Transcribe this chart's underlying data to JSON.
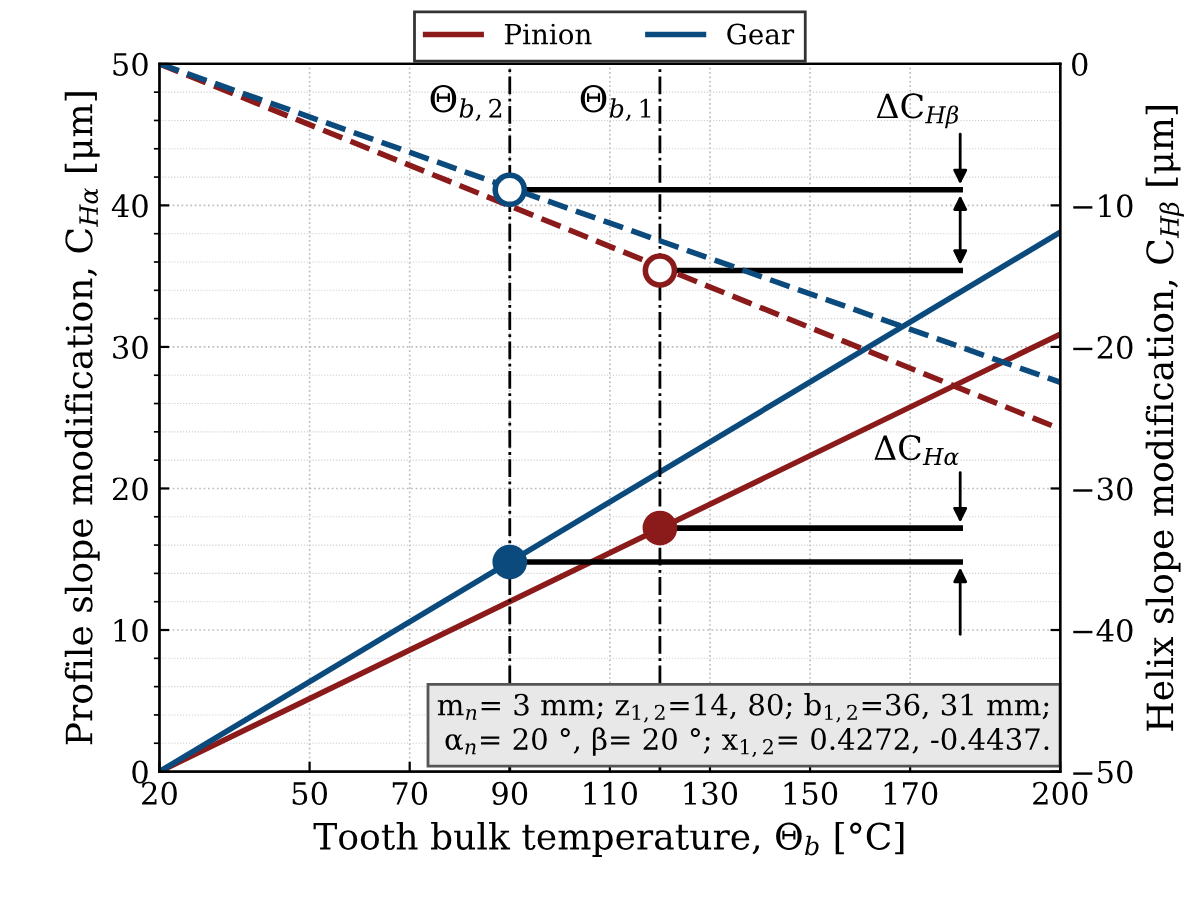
{
  "chart_data": {
    "type": "line",
    "xlabel": "Tooth bulk temperature, Θ$_{b}$ [°C]",
    "ylabel": "Profile slope modification, C$_{Hα}$ [μm]",
    "y2label": "Helix slope modification, C$_{Hβ}$ [μm]",
    "xlim": [
      20,
      200
    ],
    "xticks": [
      20,
      50,
      70,
      90,
      110,
      130,
      150,
      170,
      200
    ],
    "ylim": [
      0,
      50
    ],
    "yticks": [
      0,
      10,
      20,
      30,
      40,
      50
    ],
    "y2lim": [
      -50,
      0
    ],
    "y2ticks": [
      -50,
      -40,
      -30,
      -20,
      -10,
      0
    ],
    "grid": true,
    "legend": "top",
    "series": [
      {
        "name": "Pinion",
        "color": "#8b1a1a",
        "x": [
          20,
          200
        ],
        "values": [
          0,
          30.9
        ],
        "line_style": "solid"
      },
      {
        "name": "Gear",
        "color": "#0b4a7d",
        "x": [
          20,
          200
        ],
        "values": [
          0,
          38.1
        ],
        "line_style": "solid"
      },
      {
        "color": "#8b1a1a",
        "x": [
          20,
          200
        ],
        "values": [
          0,
          -25.8
        ],
        "axis": "y2",
        "line_style": "dashed"
      },
      {
        "color": "#0b4a7d",
        "x": [
          20,
          200
        ],
        "values": [
          0,
          -22.5
        ],
        "axis": "y2",
        "line_style": "dashed"
      },
      {
        "type": "scatter",
        "color": "#8b1a1a",
        "x": [
          120
        ],
        "values": [
          17.2
        ],
        "marker": "circle"
      },
      {
        "type": "scatter",
        "color": "#0b4a7d",
        "x": [
          90
        ],
        "values": [
          14.8
        ],
        "marker": "circle"
      },
      {
        "type": "scatter",
        "color": "#8b1a1a",
        "x": [
          120
        ],
        "values": [
          -14.6
        ],
        "axis": "y2",
        "marker": "circle"
      },
      {
        "type": "scatter",
        "color": "#0b4a7d",
        "x": [
          90
        ],
        "values": [
          -8.9
        ],
        "axis": "y2",
        "marker": "circle"
      },
      {
        "color": "#000000",
        "x": [
          90,
          180
        ],
        "values": [
          41.1,
          41.1
        ],
        "line_style": "solid"
      },
      {
        "color": "#000000",
        "x": [
          120,
          180
        ],
        "values": [
          35.4,
          35.4
        ],
        "line_style": "solid"
      },
      {
        "color": "#000000",
        "x": [
          120,
          180
        ],
        "values": [
          17.2,
          17.2
        ],
        "line_style": "solid"
      },
      {
        "color": "#000000",
        "x": [
          90,
          180
        ],
        "values": [
          14.8,
          14.8
        ],
        "line_style": "solid"
      }
    ],
    "ref_lines": [
      {
        "axis": "x",
        "value": 90,
        "label": "Θ$_{b,2}$",
        "color": "#000000",
        "line_style": "dashdot"
      },
      {
        "axis": "x",
        "value": 120,
        "label": "Θ$_{b,1}$",
        "color": "#000000",
        "line_style": "dashdot"
      }
    ],
    "annotations": [
      {
        "text": "ΔC$_{Hβ}$",
        "x": 180,
        "y": 41.1
      },
      {
        "text": "ΔC$_{Hα}$",
        "x": 180,
        "y": 17.2
      },
      "m$_{n}$= 3 mm; z$_{1,2}$=14, 80; b$_{1,2}$=36, 31 mm;\nα$_{n}$= 20 °, β= 20 °; x$_{1,2}$= 0.4272, -0.4437."
    ]
  }
}
